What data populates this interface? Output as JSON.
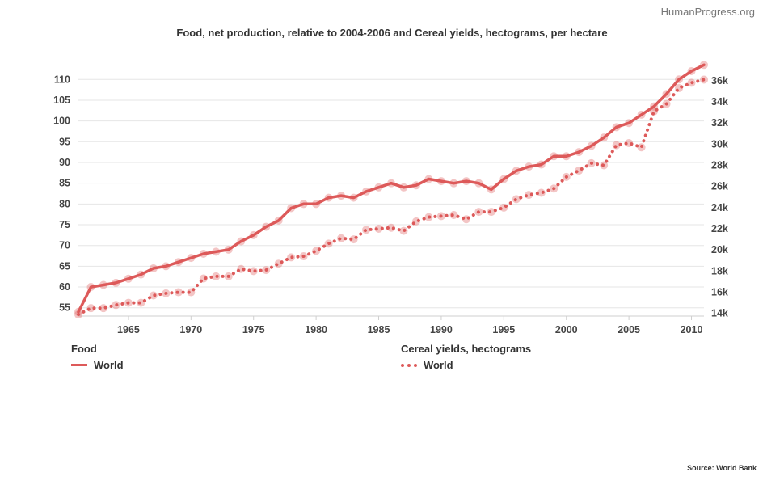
{
  "brand": "HumanProgress.org",
  "source": "Source: World Bank",
  "chart_data": {
    "type": "line",
    "title": "Food, net production, relative to 2004-2006 and Cereal yields, hectograms, per hectare",
    "x": [
      1961,
      1962,
      1963,
      1964,
      1965,
      1966,
      1967,
      1968,
      1969,
      1970,
      1971,
      1972,
      1973,
      1974,
      1975,
      1976,
      1977,
      1978,
      1979,
      1980,
      1981,
      1982,
      1983,
      1984,
      1985,
      1986,
      1987,
      1988,
      1989,
      1990,
      1991,
      1992,
      1993,
      1994,
      1995,
      1996,
      1997,
      1998,
      1999,
      2000,
      2001,
      2002,
      2003,
      2004,
      2005,
      2006,
      2007,
      2008,
      2009,
      2010,
      2011
    ],
    "x_ticks": [
      "1965",
      "1970",
      "1975",
      "1980",
      "1985",
      "1990",
      "1995",
      "2000",
      "2005",
      "2010"
    ],
    "xlim": [
      1961,
      2011
    ],
    "y_left": {
      "ticks": [
        "55",
        "60",
        "65",
        "70",
        "75",
        "80",
        "85",
        "90",
        "95",
        "100",
        "105",
        "110"
      ],
      "lim": [
        53,
        112
      ]
    },
    "y_right": {
      "ticks": [
        "14k",
        "16k",
        "18k",
        "20k",
        "22k",
        "24k",
        "26k",
        "28k",
        "30k",
        "32k",
        "34k",
        "36k"
      ],
      "tick_values": [
        14000,
        16000,
        18000,
        20000,
        22000,
        24000,
        26000,
        28000,
        30000,
        32000,
        34000,
        36000
      ],
      "lim": [
        13750,
        36900
      ]
    },
    "grid": true,
    "series": [
      {
        "group": "Food",
        "name": "World",
        "axis": "left",
        "style": "solid",
        "color": "#dd5a5a",
        "values": [
          54,
          60,
          60.5,
          61,
          62,
          63,
          64.5,
          65,
          66,
          67,
          68,
          68.5,
          69,
          71,
          72.5,
          74.5,
          76,
          79,
          80,
          80,
          81.5,
          82,
          81.5,
          83,
          84,
          85,
          84,
          84.5,
          86,
          85.5,
          85,
          85.5,
          85,
          83.5,
          86,
          88,
          89,
          89.5,
          91.5,
          91.5,
          92.5,
          94,
          96,
          98.5,
          99.5,
          101.5,
          103.5,
          106.5,
          110,
          112,
          113.5
        ]
      },
      {
        "group": "Cereal yields, hectograms",
        "name": "World",
        "axis": "right",
        "style": "dotted",
        "color": "#dd5a5a",
        "values": [
          13900,
          14500,
          14500,
          14800,
          15000,
          15000,
          15700,
          15900,
          16000,
          16000,
          17300,
          17500,
          17500,
          18200,
          18000,
          18100,
          18700,
          19300,
          19400,
          19900,
          20600,
          21100,
          21000,
          21900,
          22000,
          22100,
          21800,
          22700,
          23100,
          23200,
          23300,
          22900,
          23600,
          23600,
          24000,
          24800,
          25200,
          25400,
          25800,
          26900,
          27500,
          28200,
          28000,
          29900,
          30100,
          29700,
          33100,
          33800,
          35300,
          35800,
          36100
        ]
      }
    ]
  },
  "legend": {
    "food_title": "Food",
    "food_item": "World",
    "cereal_title": "Cereal yields, hectograms",
    "cereal_item": "World"
  }
}
